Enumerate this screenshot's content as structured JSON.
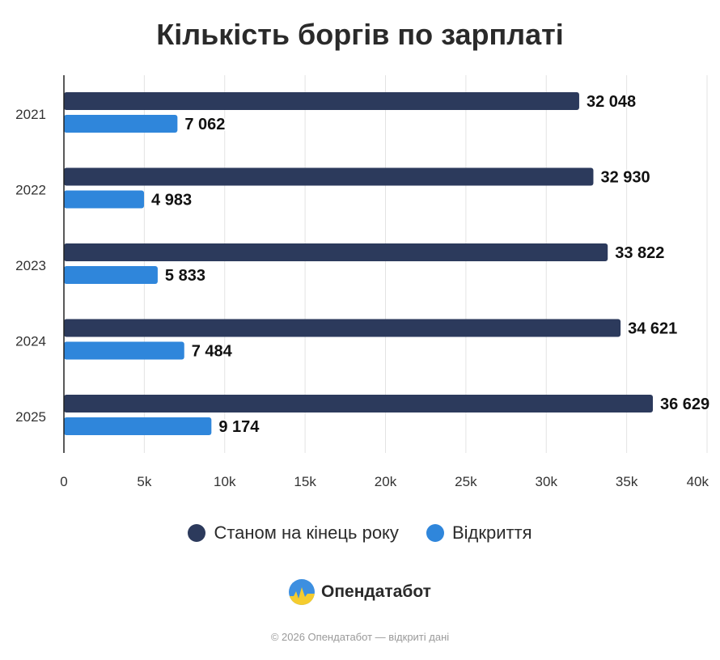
{
  "title": "Кількість боргів по зарплаті",
  "colors": {
    "dark": "#2c3a5c",
    "blue": "#2f86db",
    "axis": "#222222",
    "grid": "#e3e3e3"
  },
  "chart_data": {
    "type": "bar",
    "orientation": "horizontal",
    "categories": [
      "2021",
      "2022",
      "2023",
      "2024",
      "2025"
    ],
    "series": [
      {
        "name": "Станом на кінець року",
        "values": [
          32048,
          32930,
          33822,
          34621,
          36629
        ],
        "labels": [
          "32 048",
          "32 930",
          "33 822",
          "34 621",
          "36 629"
        ]
      },
      {
        "name": "Відкриття",
        "values": [
          7062,
          4983,
          5833,
          7484,
          9174
        ],
        "labels": [
          "7 062",
          "4 983",
          "5 833",
          "7 484",
          "9 174"
        ]
      }
    ],
    "xlim": [
      0,
      40000
    ],
    "x_ticks": [
      0,
      5000,
      10000,
      15000,
      20000,
      25000,
      30000,
      35000,
      40000
    ],
    "x_tick_labels": [
      "0",
      "5k",
      "10k",
      "15k",
      "20k",
      "25k",
      "30k",
      "35k",
      "40k"
    ],
    "grid": true,
    "legend_position": "bottom"
  },
  "legend": {
    "series1": "Станом на кінець року",
    "series2": "Відкриття"
  },
  "brand": "Опендатабот",
  "footer": "© 2026 Опендатабот — відкриті дані"
}
